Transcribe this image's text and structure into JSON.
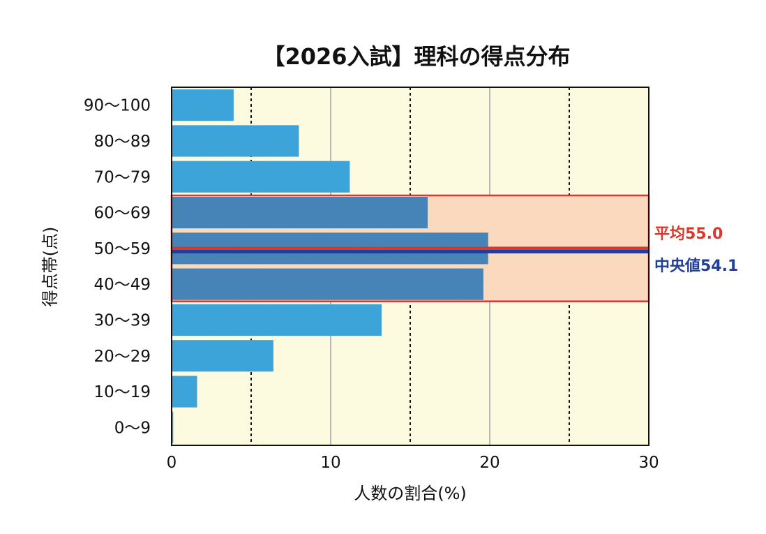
{
  "chart_data": {
    "type": "bar",
    "orientation": "horizontal",
    "title": "【2026入試】理科の得点分布",
    "xlabel": "人数の割合(%)",
    "ylabel": "得点帯(点)",
    "categories": [
      "90〜100",
      "80〜89",
      "70〜79",
      "60〜69",
      "50〜59",
      "40〜49",
      "30〜39",
      "20〜29",
      "10〜19",
      "0〜9"
    ],
    "values": [
      3.9,
      8.0,
      11.2,
      16.1,
      19.9,
      19.6,
      13.2,
      6.4,
      1.6,
      0.1
    ],
    "xlim": [
      0,
      30
    ],
    "xticks": [
      0,
      10,
      20,
      30
    ],
    "xtick_labels": [
      "0",
      "10",
      "20",
      "30"
    ],
    "grid": {
      "solid": [
        10,
        20
      ],
      "dotted": [
        5,
        15,
        25
      ]
    },
    "highlight_band": {
      "from_category": "60〜69",
      "to_category": "40〜49"
    },
    "annotations": {
      "mean": {
        "label": "平均55.0",
        "value": 55.0
      },
      "median": {
        "label": "中央値54.1",
        "value": 54.1
      }
    },
    "colors": {
      "bar": "#3fa9e0",
      "bar_highlight": "#4a88bd",
      "plot_background": "#fcfbe0",
      "band_fill": "#fad9bf",
      "band_border": "#d9382c",
      "mean_line": "#d9382c",
      "median_line": "#1f3f9a",
      "mean_text": "#d9382c",
      "median_text": "#1f3f9a"
    }
  }
}
